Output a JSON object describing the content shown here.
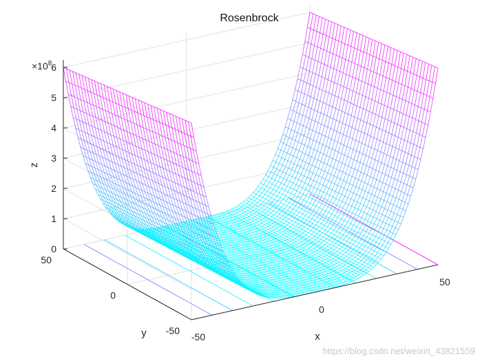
{
  "chart_data": {
    "type": "surface-mesh",
    "title": "Rosenbrock",
    "function": "z = 100*(y - x^2)^2 + (1 - x)^2",
    "xlabel": "x",
    "ylabel": "y",
    "zlabel": "z",
    "xlim": [
      -50,
      50
    ],
    "ylim": [
      -50,
      50
    ],
    "zlim": [
      0,
      625000000.0
    ],
    "x_ticks": [
      "-50",
      "0",
      "50"
    ],
    "y_ticks": [
      "-50",
      "0",
      "50"
    ],
    "z_ticks": [
      "0",
      "1",
      "2",
      "3",
      "4",
      "5",
      "6"
    ],
    "z_exponent_label": "×10",
    "z_exponent_power": "8",
    "grid": true,
    "colormap": "cool",
    "colormap_colors": [
      "#00ffff",
      "#ff00ff"
    ]
  },
  "watermark": "https://blog.csdn.net/weixin_43821559"
}
